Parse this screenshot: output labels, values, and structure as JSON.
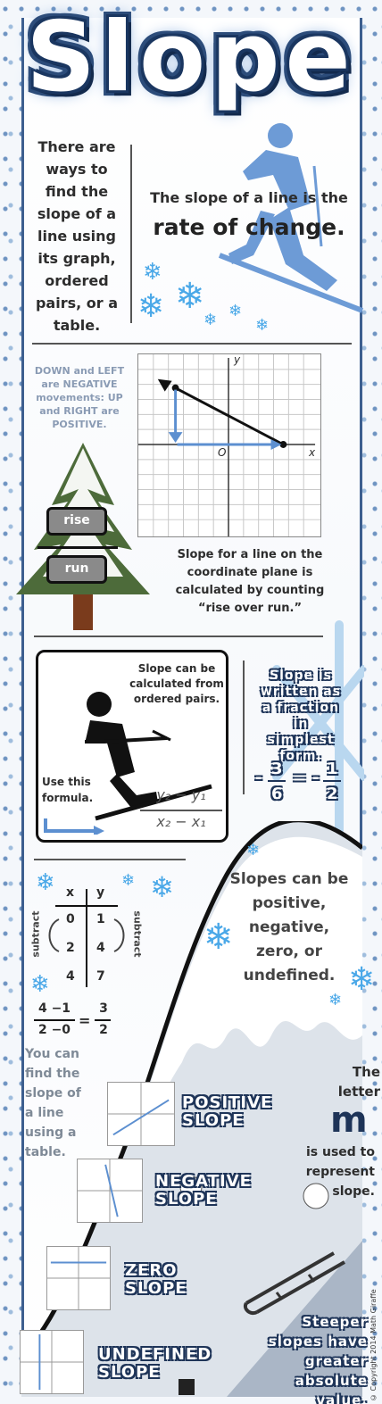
{
  "title": "Slope",
  "intro": {
    "left_text": "There are ways to find the slope of a line using its graph, ordered pairs, or a table.",
    "right_line1": "The slope of a line is the",
    "right_line2": "rate of change."
  },
  "graph_section": {
    "movement_text": "DOWN and LEFT are NEGATIVE movements: UP and RIGHT are POSITIVE.",
    "rise_label": "rise",
    "run_label": "run",
    "axis_y": "y",
    "axis_x": "x",
    "origin": "O",
    "caption": "Slope for a line on the coordinate plane is calculated by counting “rise over run.”"
  },
  "formula_section": {
    "intro": "Slope can be calculated from ordered pairs.",
    "use_formula": "Use this formula.",
    "numerator": "y₂ − y₁",
    "denominator": "x₂ − x₁",
    "simplest_text": "Slope is written as a fraction in simplest form.",
    "example_left_num": "3",
    "example_left_den": "6",
    "example_right_num": "1",
    "example_right_den": "2",
    "neg_sign": "-",
    "equals": "="
  },
  "table_section": {
    "col_x": "x",
    "col_y": "y",
    "rows": [
      [
        "0",
        "1"
      ],
      [
        "2",
        "4"
      ],
      [
        "4",
        "7"
      ]
    ],
    "left_label": "subtract",
    "right_label": "subtract",
    "calc_num": "4 −1",
    "calc_den": "2 −0",
    "result_num": "3",
    "result_den": "2",
    "equals": "=",
    "caption": "You can find the slope of a line using a table."
  },
  "types_section": {
    "kinds_text": "Slopes can be positive, negative, zero, or undefined.",
    "positive": "POSITIVE SLOPE",
    "negative": "NEGATIVE SLOPE",
    "zero": "ZERO SLOPE",
    "undefined": "UNDEFINED SLOPE",
    "letter_intro": "The letter",
    "letter": "m",
    "letter_outro": "is used to represent slope.",
    "steeper": "Steeper slopes have greater absolute value."
  },
  "copyright": "© Copyright 2014 Math Giraffe",
  "colors": {
    "navy": "#1e3458",
    "ice_blue": "#4aa8e8",
    "arrow_blue": "#5c8fd0",
    "gray_text": "#555555"
  }
}
